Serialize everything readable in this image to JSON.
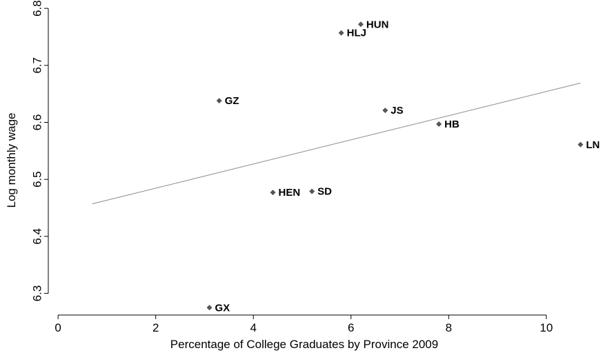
{
  "chart_data": {
    "type": "scatter",
    "xlabel": "Percentage of College Graduates by Province 2009",
    "ylabel": "Log monthly wage",
    "xlim": [
      -0.2,
      10.85
    ],
    "ylim": [
      6.262,
      6.805
    ],
    "xticks": [
      0,
      2,
      4,
      6,
      8,
      10
    ],
    "xtick_labels": [
      "0",
      "2",
      "4",
      "6",
      "8",
      "10"
    ],
    "yticks": [
      6.3,
      6.4,
      6.5,
      6.6,
      6.7,
      6.8
    ],
    "ytick_labels": [
      "6.3",
      "6.4",
      "6.5",
      "6.6",
      "6.7",
      "6.8"
    ],
    "grid": false,
    "marker_color": "#555555",
    "fit_line_color": "#8a8a8a",
    "points": [
      {
        "label": "HUN",
        "x": 6.2,
        "y": 6.772
      },
      {
        "label": "HLJ",
        "x": 5.8,
        "y": 6.757
      },
      {
        "label": "GZ",
        "x": 3.3,
        "y": 6.638
      },
      {
        "label": "JS",
        "x": 6.7,
        "y": 6.621
      },
      {
        "label": "HB",
        "x": 7.8,
        "y": 6.597
      },
      {
        "label": "LN",
        "x": 10.7,
        "y": 6.561
      },
      {
        "label": "HEN",
        "x": 4.4,
        "y": 6.477
      },
      {
        "label": "SD",
        "x": 5.2,
        "y": 6.479
      },
      {
        "label": "GX",
        "x": 3.1,
        "y": 6.275
      }
    ],
    "fit_line": {
      "x": [
        0.7,
        10.7
      ],
      "y": [
        6.457,
        6.669
      ]
    }
  }
}
